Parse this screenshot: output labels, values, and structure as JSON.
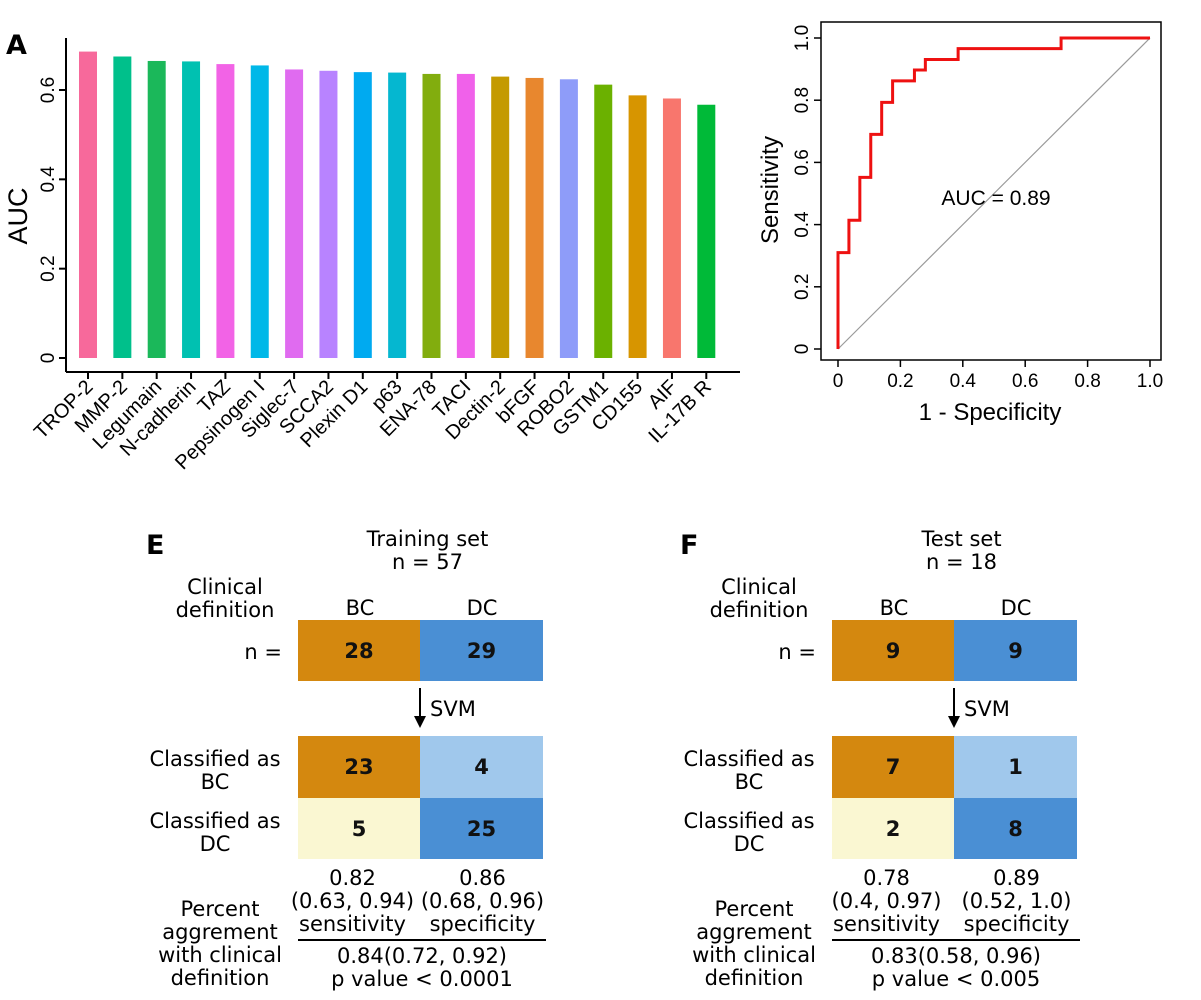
{
  "panel_a": {
    "label": "A"
  },
  "panel_e": {
    "label": "E",
    "title": "Training set",
    "n_total": "n = 57",
    "row_header_clinical": [
      "Clinical",
      "definition"
    ],
    "col_bc": "BC",
    "col_dc": "DC",
    "n_label": "n =",
    "n_bc": "28",
    "n_dc": "29",
    "svm_label": "SVM",
    "row_classified_bc": [
      "Classified as",
      "BC"
    ],
    "row_classified_dc": [
      "Classified as",
      "DC"
    ],
    "cell_bc_bc": "23",
    "cell_bc_dc": "4",
    "cell_dc_bc": "5",
    "cell_dc_dc": "25",
    "sens_value": "0.82",
    "sens_ci": "(0.63, 0.94)",
    "sens_label": "sensitivity",
    "spec_value": "0.86",
    "spec_ci": "(0.68, 0.96)",
    "spec_label": "specificity",
    "percent_label": [
      "Percent",
      "aggrement",
      "with clinical",
      "definition"
    ],
    "overall": "0.84(0.72, 0.92)",
    "pvalue": "p value < 0.0001"
  },
  "panel_f": {
    "label": "F",
    "title": "Test set",
    "n_total": "n = 18",
    "row_header_clinical": [
      "Clinical",
      "definition"
    ],
    "col_bc": "BC",
    "col_dc": "DC",
    "n_label": "n =",
    "n_bc": "9",
    "n_dc": "9",
    "svm_label": "SVM",
    "row_classified_bc": [
      "Classified as",
      "BC"
    ],
    "row_classified_dc": [
      "Classified as",
      "DC"
    ],
    "cell_bc_bc": "7",
    "cell_bc_dc": "1",
    "cell_dc_bc": "2",
    "cell_dc_dc": "8",
    "sens_value": "0.78",
    "sens_ci": "(0.4, 0.97)",
    "sens_label": "sensitivity",
    "spec_value": "0.89",
    "spec_ci": "(0.52, 1.0)",
    "spec_label": "specificity",
    "percent_label": [
      "Percent",
      "aggrement",
      "with clinical",
      "definition"
    ],
    "overall": "0.83(0.58, 0.96)",
    "pvalue": "p value < 0.005"
  },
  "colors": {
    "bc_dark": "#d4880f",
    "dc_dark": "#4a8fd4",
    "bc_light": "#faf7d2",
    "dc_light": "#a0c8ec",
    "roc_line": "#ee1111"
  },
  "chart_data": [
    {
      "type": "bar",
      "title": "",
      "xlabel": "",
      "ylabel": "AUC",
      "ylim": [
        0,
        0.7
      ],
      "yticks": [
        "0",
        "0.2",
        "0.4",
        "0.6"
      ],
      "categories": [
        "TROP-2",
        "MMP-2",
        "Legumain",
        "N-cadherin",
        "TAZ",
        "Pepsinogen I",
        "Siglec-7",
        "SCCA2",
        "Plexin D1",
        "p63",
        "ENA-78",
        "TACI",
        "Dectin-2",
        "bFGF",
        "ROBO2",
        "GSTM1",
        "CD155",
        "AIF",
        "IL-17B R"
      ],
      "values": [
        0.686,
        0.675,
        0.665,
        0.664,
        0.658,
        0.655,
        0.646,
        0.643,
        0.64,
        0.639,
        0.636,
        0.636,
        0.63,
        0.627,
        0.624,
        0.612,
        0.588,
        0.581,
        0.567
      ],
      "bar_colors": [
        "#f7699b",
        "#00c08b",
        "#1bb85a",
        "#00c1b1",
        "#f263e6",
        "#00b8e8",
        "#e06bf0",
        "#b883ff",
        "#00aaf0",
        "#05b7d0",
        "#82ad0e",
        "#f061ea",
        "#c49a00",
        "#e8872e",
        "#8e9cf9",
        "#6bb100",
        "#d79500",
        "#f8766d",
        "#00ba38"
      ]
    },
    {
      "type": "line",
      "title": "",
      "xlabel": "1 - Specificity",
      "ylabel": "Sensitivity",
      "xlim": [
        0,
        1
      ],
      "ylim": [
        0,
        1
      ],
      "xticks": [
        "0",
        "0.2",
        "0.4",
        "0.6",
        "0.8",
        "1.0"
      ],
      "yticks": [
        "0",
        "0.2",
        "0.4",
        "0.6",
        "0.8",
        "1.0"
      ],
      "annotation": "AUC = 0.89",
      "series": [
        {
          "name": "ROC",
          "x": [
            0,
            0,
            0.035,
            0.035,
            0.07,
            0.07,
            0.105,
            0.105,
            0.14,
            0.14,
            0.175,
            0.175,
            0.245,
            0.245,
            0.28,
            0.28,
            0.385,
            0.385,
            0.715,
            0.715,
            1.0
          ],
          "y": [
            0,
            0.31,
            0.31,
            0.414,
            0.414,
            0.552,
            0.552,
            0.69,
            0.69,
            0.793,
            0.793,
            0.862,
            0.862,
            0.897,
            0.897,
            0.931,
            0.931,
            0.966,
            0.966,
            1.0,
            1.0
          ]
        },
        {
          "name": "reference",
          "x": [
            0,
            1
          ],
          "y": [
            0,
            1
          ]
        }
      ]
    }
  ]
}
